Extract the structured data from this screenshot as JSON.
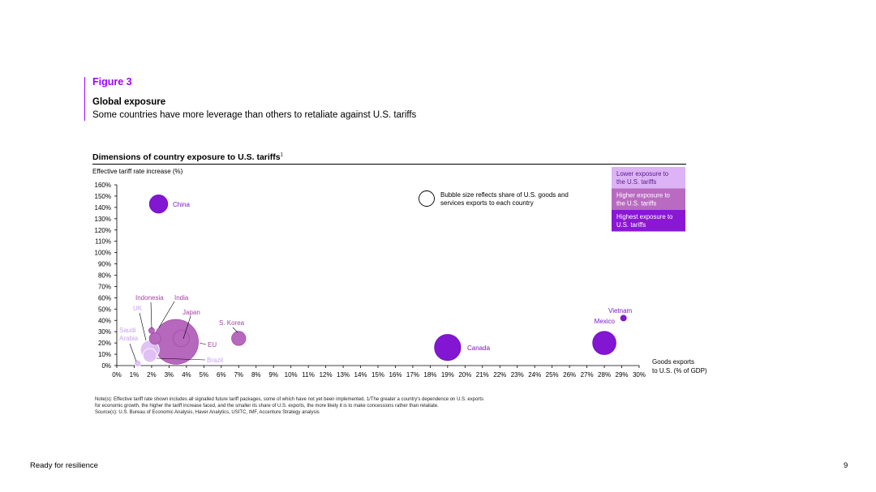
{
  "figure_label": "Figure 3",
  "title": "Global exposure",
  "subtitle": "Some countries have more leverage than others to retaliate against U.S. tariffs",
  "chart_title": "Dimensions of country exposure to U.S. tariffs",
  "chart_title_sup": "1",
  "notes": [
    "Note(s): Effective tariff rate shown includes all signalled future tariff packages, some of which have not yet been implemented. 1/The greater a country's dependence on U.S. exports",
    "for economic growth, the higher the tariff increase faced, and the smaller its share of U.S. exports, the more likely it is to make concessions rather than retaliate.",
    "Source(s): U.S. Bureau of Economic Analysis, Haver Analytics, USITC, IMF, Accenture Strategy analysis"
  ],
  "footer": {
    "left": "Ready for resilience",
    "page": "9"
  },
  "chart_data": {
    "type": "scatter",
    "ylabel": "Effective tariff rate increase (%)",
    "xlabel": "Goods exports to U.S. (% of GDP)",
    "xlim": [
      0,
      30
    ],
    "ylim": [
      0,
      160
    ],
    "xticks": [
      "0%",
      "1%",
      "2%",
      "3%",
      "4%",
      "5%",
      "6%",
      "7%",
      "8%",
      "9%",
      "10%",
      "11%",
      "12%",
      "13%",
      "14%",
      "15%",
      "16%",
      "17%",
      "18%",
      "19%",
      "20%",
      "21%",
      "22%",
      "23%",
      "24%",
      "25%",
      "26%",
      "27%",
      "28%",
      "29%",
      "30%"
    ],
    "yticks": [
      "0%",
      "10%",
      "20%",
      "30%",
      "40%",
      "50%",
      "60%",
      "70%",
      "80%",
      "90%",
      "100%",
      "110%",
      "120%",
      "130%",
      "140%",
      "150%",
      "160%"
    ],
    "bubble_note": "Bubble size reflects share of U.S. goods and services exports to each country",
    "legend": [
      {
        "label": "Lower exposure to the U.S. tariffs",
        "color": "#dcb4f5",
        "text_color": "#5a1a8c"
      },
      {
        "label": "Higher exposure to the U.S. tariffs",
        "color": "#b86bc0",
        "text_color": "#ffffff"
      },
      {
        "label": "Highest exposure to U.S. tariffs",
        "color": "#8a16d6",
        "text_color": "#ffffff"
      }
    ],
    "points": [
      {
        "name": "China",
        "x": 2.4,
        "y": 143,
        "size": 3.0,
        "exposure": 2
      },
      {
        "name": "Canada",
        "x": 19.0,
        "y": 16,
        "size": 6.2,
        "exposure": 2
      },
      {
        "name": "Mexico",
        "x": 28.0,
        "y": 20,
        "size": 4.9,
        "exposure": 2
      },
      {
        "name": "Vietnam",
        "x": 29.1,
        "y": 42,
        "size": 0.3,
        "exposure": 2
      },
      {
        "name": "EU",
        "x": 3.4,
        "y": 21,
        "size": 18.0,
        "exposure": 1
      },
      {
        "name": "Japan",
        "x": 3.7,
        "y": 24,
        "size": 2.4,
        "exposure": 1
      },
      {
        "name": "S. Korea",
        "x": 7.0,
        "y": 24,
        "size": 1.8,
        "exposure": 1
      },
      {
        "name": "India",
        "x": 2.2,
        "y": 24,
        "size": 1.2,
        "exposure": 1
      },
      {
        "name": "Indonesia",
        "x": 2.0,
        "y": 31,
        "size": 0.3,
        "exposure": 1
      },
      {
        "name": "UK",
        "x": 1.9,
        "y": 14,
        "size": 3.2,
        "exposure": 0
      },
      {
        "name": "Brazil",
        "x": 1.9,
        "y": 9,
        "size": 1.7,
        "exposure": 0
      },
      {
        "name": "Saudi Arabia",
        "x": 1.2,
        "y": 2,
        "size": 0.4,
        "exposure": 0
      }
    ]
  }
}
